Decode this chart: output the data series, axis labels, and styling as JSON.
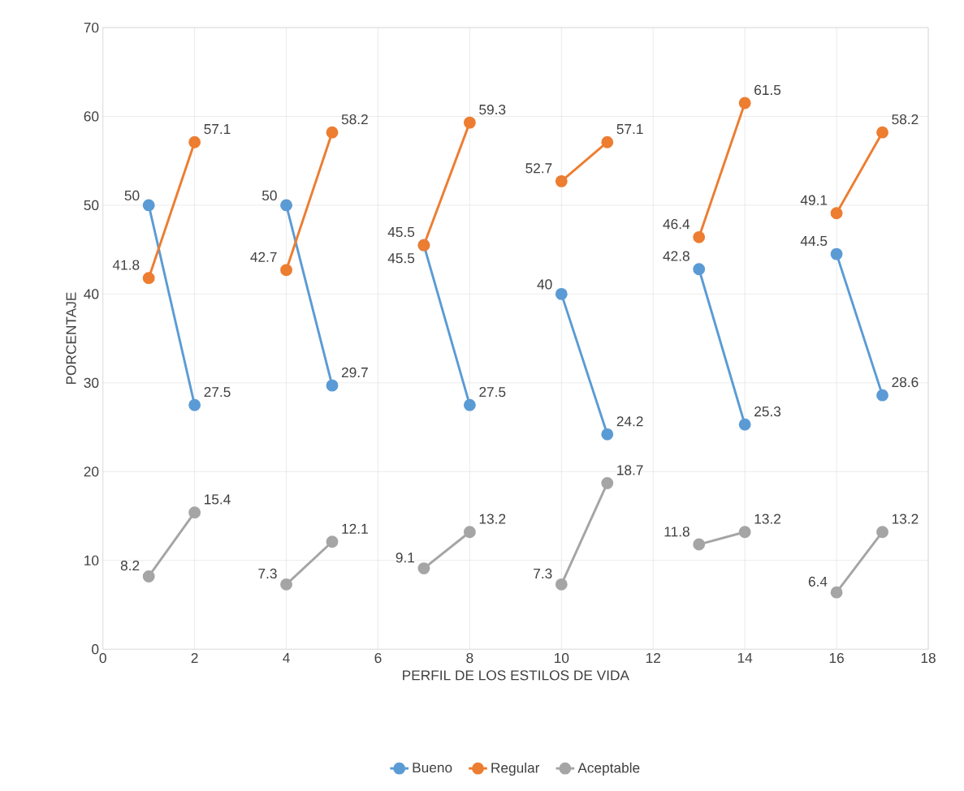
{
  "chart_data": {
    "type": "line",
    "xlabel": "PERFIL DE LOS ESTILOS DE VIDA",
    "ylabel": "PORCENTAJE",
    "x": [
      1,
      2,
      3,
      4,
      5,
      6,
      7,
      8,
      9,
      10,
      11,
      12,
      13,
      14,
      15,
      16,
      17
    ],
    "series": [
      {
        "name": "Bueno",
        "color": "#5b9bd5",
        "values": [
          50,
          27.5,
          null,
          50,
          29.7,
          null,
          45.5,
          27.5,
          null,
          40,
          24.2,
          null,
          42.8,
          25.3,
          null,
          44.5,
          28.6
        ]
      },
      {
        "name": "Regular",
        "color": "#ed7d31",
        "values": [
          41.8,
          57.1,
          null,
          42.7,
          58.2,
          null,
          45.5,
          59.3,
          null,
          52.7,
          57.1,
          null,
          46.4,
          61.5,
          null,
          49.1,
          58.2
        ]
      },
      {
        "name": "Aceptable",
        "color": "#a5a5a5",
        "values": [
          8.2,
          15.4,
          null,
          7.3,
          12.1,
          null,
          9.1,
          13.2,
          null,
          7.3,
          18.7,
          null,
          11.8,
          13.2,
          null,
          6.4,
          13.2
        ]
      }
    ],
    "xlim": [
      0,
      18
    ],
    "ylim": [
      0,
      70
    ],
    "xticks": [
      0,
      2,
      4,
      6,
      8,
      10,
      12,
      14,
      16,
      18
    ],
    "yticks": [
      0,
      10,
      20,
      30,
      40,
      50,
      60,
      70
    ],
    "grid": true,
    "legend": "bottom",
    "marker": "circle",
    "line_style": "solid",
    "data_labels": true
  }
}
